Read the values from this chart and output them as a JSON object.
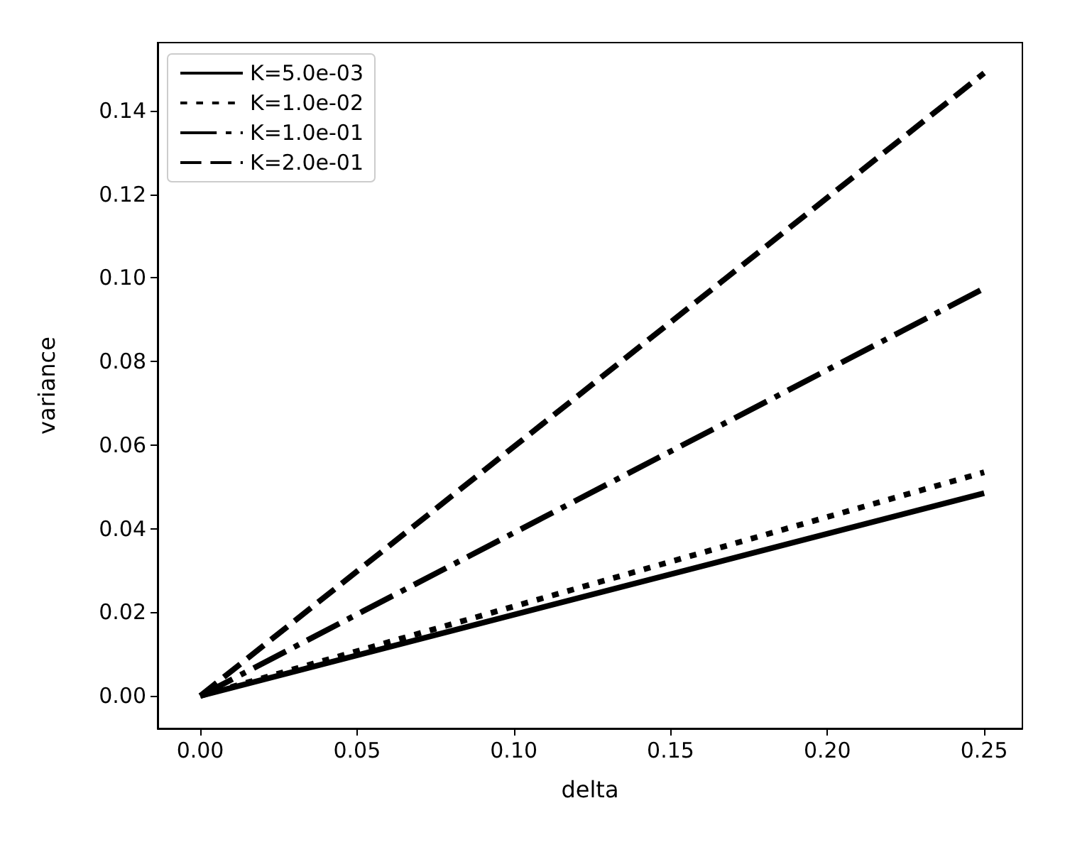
{
  "chart_data": {
    "type": "line",
    "xlabel": "delta",
    "ylabel": "variance",
    "xlim": [
      -0.0136,
      0.2622
    ],
    "ylim": [
      -0.0078,
      0.1563
    ],
    "xticks": [
      {
        "value": 0,
        "label": "0.00"
      },
      {
        "value": 0.05,
        "label": "0.05"
      },
      {
        "value": 0.1,
        "label": "0.10"
      },
      {
        "value": 0.15,
        "label": "0.15"
      },
      {
        "value": 0.2,
        "label": "0.20"
      },
      {
        "value": 0.25,
        "label": "0.25"
      }
    ],
    "yticks": [
      {
        "value": 0,
        "label": "0.00"
      },
      {
        "value": 0.02,
        "label": "0.02"
      },
      {
        "value": 0.04,
        "label": "0.04"
      },
      {
        "value": 0.06,
        "label": "0.06"
      },
      {
        "value": 0.08,
        "label": "0.08"
      },
      {
        "value": 0.1,
        "label": "0.10"
      },
      {
        "value": 0.12,
        "label": "0.12"
      },
      {
        "value": 0.14,
        "label": "0.14"
      }
    ],
    "legend": "top left",
    "grid": false,
    "marker": "none",
    "x": [
      0,
      0.25
    ],
    "series": [
      {
        "name": "K=5.0e-03",
        "color": "#000000",
        "line_style": "solid",
        "values": [
          0,
          0.0485
        ]
      },
      {
        "name": "K=1.0e-02",
        "color": "#000000",
        "line_style": "dotted",
        "values": [
          0,
          0.0535
        ]
      },
      {
        "name": "K=1.0e-01",
        "color": "#000000",
        "line_style": "dashdot",
        "values": [
          0,
          0.0975
        ]
      },
      {
        "name": "K=2.0e-01",
        "color": "#000000",
        "line_style": "dashed",
        "values": [
          0,
          0.149
        ]
      }
    ]
  }
}
